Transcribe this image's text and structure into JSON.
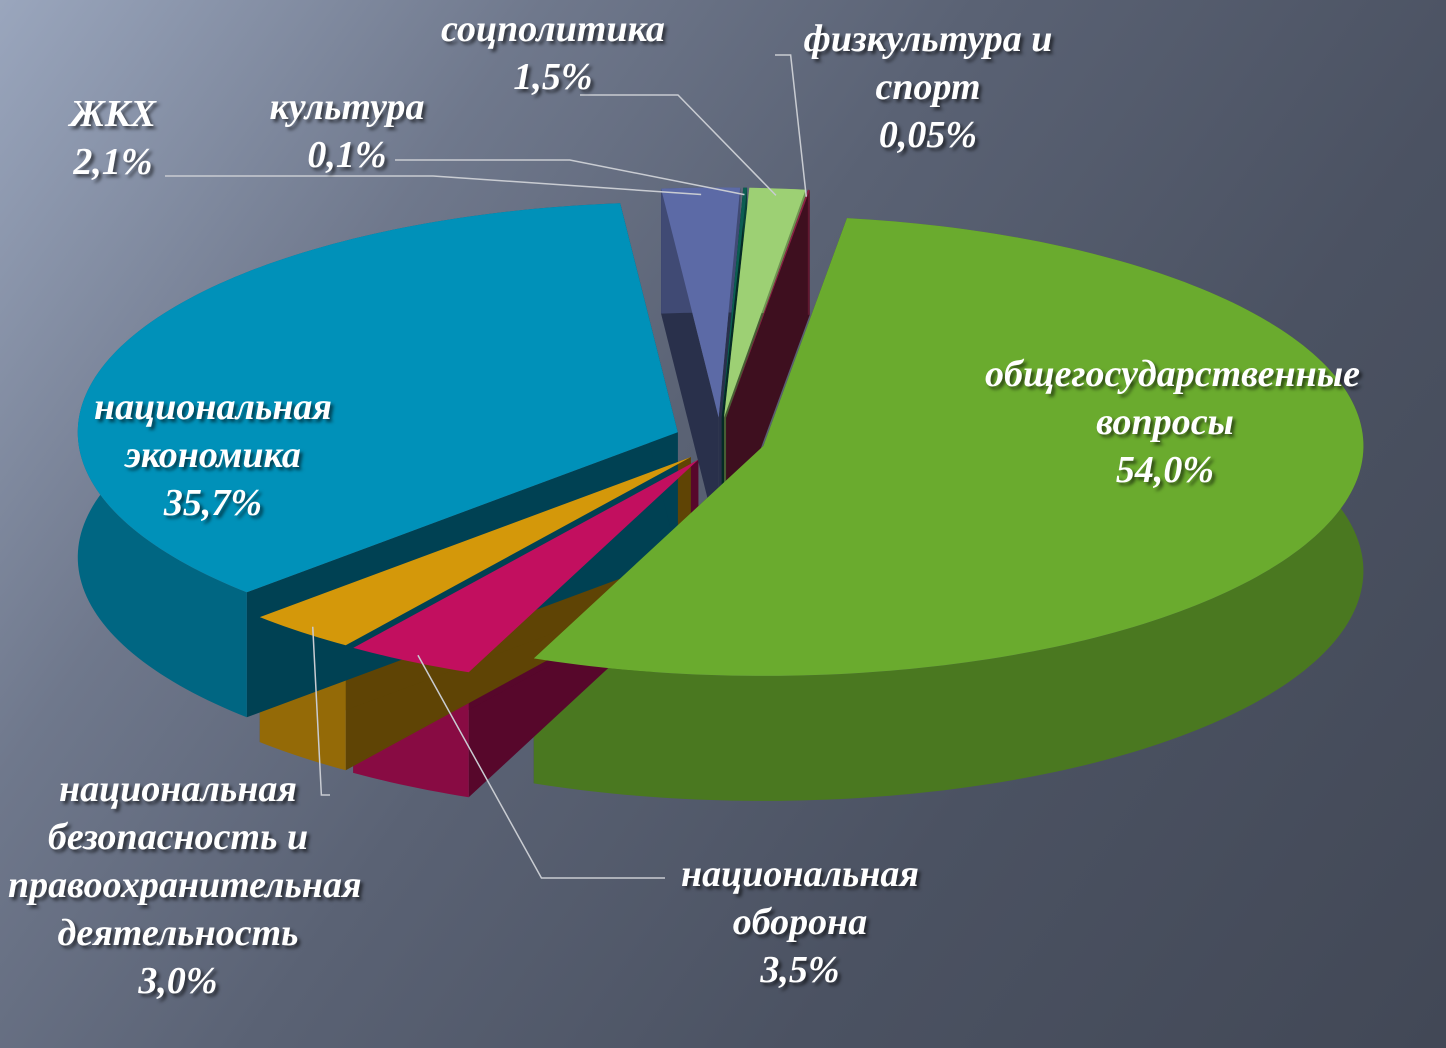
{
  "chart_data": {
    "type": "pie",
    "categories": [
      "общегосударственные вопросы",
      "национальная оборона",
      "национальная безопасность и правоохранительная деятельность",
      "национальная экономика",
      "ЖКХ",
      "культура",
      "соцполитика",
      "физкультура и спорт"
    ],
    "values": [
      54.0,
      3.5,
      3.0,
      35.7,
      2.1,
      0.1,
      1.5,
      0.05
    ],
    "value_labels": [
      "54,0%",
      "3,5%",
      "3,0%",
      "35,7%",
      "2,1%",
      "0,1%",
      "1,5%",
      "0,05%"
    ],
    "colors": [
      "#6aab2e",
      "#c20f5f",
      "#d4980a",
      "#0091b9",
      "#5c6aa6",
      "#0b5e52",
      "#9dd074",
      "#8a2244"
    ]
  }
}
